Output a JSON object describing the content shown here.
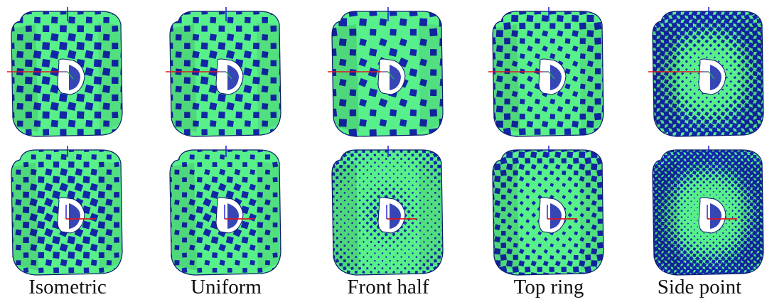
{
  "columns": [
    {
      "label": "Isometric",
      "top_tile": 14,
      "bottom_tile": 16,
      "top_warp": 0.35,
      "bottom_warp": 0.55
    },
    {
      "label": "Uniform",
      "top_tile": 14,
      "bottom_tile": 16,
      "top_warp": 0.35,
      "bottom_warp": 0.6
    },
    {
      "label": "Front half",
      "top_tile": 12,
      "bottom_tile": 32,
      "top_warp": 0.55,
      "bottom_warp": 1.45
    },
    {
      "label": "Top ring",
      "top_tile": 16,
      "bottom_tile": 20,
      "top_warp": 0.6,
      "bottom_warp": 1.0
    },
    {
      "label": "Side point",
      "top_tile": 30,
      "bottom_tile": 38,
      "top_warp": 1.7,
      "bottom_warp": 1.9
    }
  ],
  "colors": {
    "checker_a": "#1326a8",
    "checker_b": "#58f08a",
    "outline": "#0b1a6e",
    "axis_x": "#e0161f",
    "axis_y": "#1a1ad8",
    "axis_z": "#20b848",
    "hole": "#ffffff"
  }
}
